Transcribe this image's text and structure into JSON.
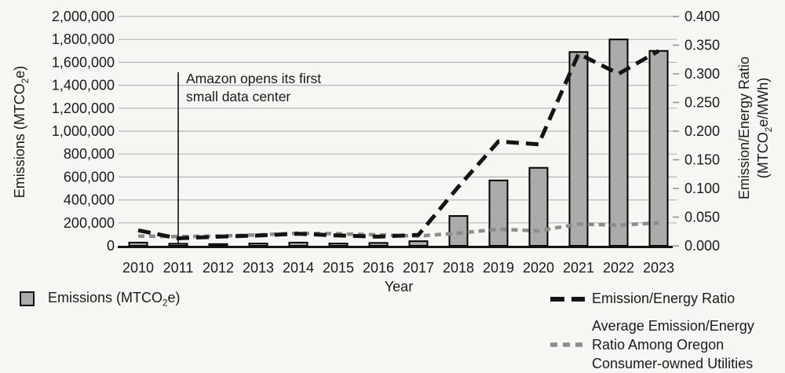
{
  "chart_data": {
    "type": "bar",
    "categories": [
      "2010",
      "2011",
      "2012",
      "2013",
      "2014",
      "2015",
      "2016",
      "2017",
      "2018",
      "2019",
      "2020",
      "2021",
      "2022",
      "2023"
    ],
    "series": [
      {
        "name": "Emissions (MTCO2e)",
        "type": "bar",
        "axis": "left",
        "values": [
          28000,
          18000,
          15000,
          20000,
          28000,
          20000,
          25000,
          40000,
          260000,
          570000,
          680000,
          1690000,
          1800000,
          1700000
        ]
      },
      {
        "name": "Emission/Energy Ratio",
        "type": "line",
        "axis": "right",
        "values": [
          0.027,
          0.013,
          0.016,
          0.018,
          0.021,
          0.018,
          0.016,
          0.019,
          0.103,
          0.182,
          0.177,
          0.335,
          0.3,
          0.34
        ]
      },
      {
        "name": "Average Emission/Energy Ratio Among Oregon Consumer-owned Utilities",
        "type": "line",
        "axis": "right",
        "values": [
          0.017,
          0.016,
          0.017,
          0.019,
          0.022,
          0.021,
          0.019,
          0.017,
          0.022,
          0.029,
          0.026,
          0.038,
          0.036,
          0.04
        ]
      }
    ],
    "xlabel": "Year",
    "ylabel_left": "Emissions (MTCO2e)",
    "ylabel_right": "Emission/Energy Ratio (MTCO2e/MWh)",
    "ylim_left": [
      0,
      2000000
    ],
    "ylim_right": [
      0.0,
      0.4
    ],
    "grid": "horizontal, every 200,000 (left axis)",
    "legend_position": "bottom",
    "annotation": {
      "text": "Amazon opens its first small data center",
      "at_year": "2011"
    }
  },
  "left_axis": {
    "title_pre": "Emissions (MTCO",
    "title_sub": "2",
    "title_post": "e)",
    "tick_labels": [
      "0",
      "200,000",
      "400,000",
      "600,000",
      "800,000",
      "1,000,000",
      "1,200,000",
      "1,400,000",
      "1,600,000",
      "1,800,000",
      "2,000,000"
    ]
  },
  "right_axis": {
    "title_line1": "Emission/Energy Ratio",
    "title_line2_pre": "(MTCO",
    "title_line2_sub": "2",
    "title_line2_post": "e/MWh)",
    "tick_labels": [
      "0.000",
      "0.050",
      "0.100",
      "0.150",
      "0.200",
      "0.250",
      "0.300",
      "0.350",
      "0.400"
    ]
  },
  "x_axis": {
    "label": "Year"
  },
  "annotation": {
    "text_line1": "Amazon opens its first",
    "text_line2": "small data center",
    "at_year": "2011"
  },
  "legend": {
    "emissions": {
      "pre": "Emissions (MTCO",
      "sub": "2",
      "post": "e)"
    },
    "ratio": {
      "label": "Emission/Energy Ratio"
    },
    "average": {
      "lines": [
        "Average Emission/Energy",
        "Ratio Among Oregon",
        "Consumer-owned Utilities"
      ]
    }
  },
  "colors": {
    "background": "#f6f6f3",
    "text": "#1a1a1a",
    "bar_fill": "#ababab",
    "bar_border": "#000000",
    "ratio_line": "#141414",
    "average_line": "#8c8c8c",
    "gridline": "#b5b5b5",
    "axis_line": "#141414",
    "annotation_line": "#111111"
  }
}
